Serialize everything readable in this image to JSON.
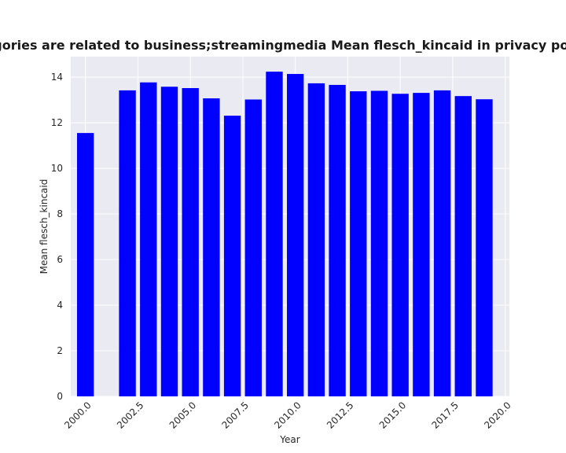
{
  "chart_data": {
    "type": "bar",
    "title": "When categories are related to business;streamingmedia Mean flesch_kincaid in privacy policies by Year",
    "xlabel": "Year",
    "ylabel": "Mean flesch_kincaid",
    "x": [
      2000,
      2002,
      2003,
      2004,
      2005,
      2006,
      2007,
      2008,
      2009,
      2010,
      2011,
      2012,
      2013,
      2014,
      2015,
      2016,
      2017,
      2018,
      2019
    ],
    "values": [
      11.55,
      13.42,
      13.77,
      13.58,
      13.52,
      13.07,
      12.31,
      13.02,
      14.24,
      14.14,
      13.73,
      13.66,
      13.38,
      13.4,
      13.27,
      13.31,
      13.42,
      13.17,
      13.03
    ],
    "xlim": [
      1999.3,
      2020.2
    ],
    "ylim": [
      0,
      14.9
    ],
    "xticks": [
      "2000.0",
      "2002.5",
      "2005.0",
      "2007.5",
      "2010.0",
      "2012.5",
      "2015.0",
      "2017.5",
      "2020.0"
    ],
    "yticks": [
      "0",
      "2",
      "4",
      "6",
      "8",
      "10",
      "12",
      "14"
    ],
    "bar_color": "#0000ff",
    "background_color": "#eaeaf2",
    "grid": true,
    "legend": false
  }
}
